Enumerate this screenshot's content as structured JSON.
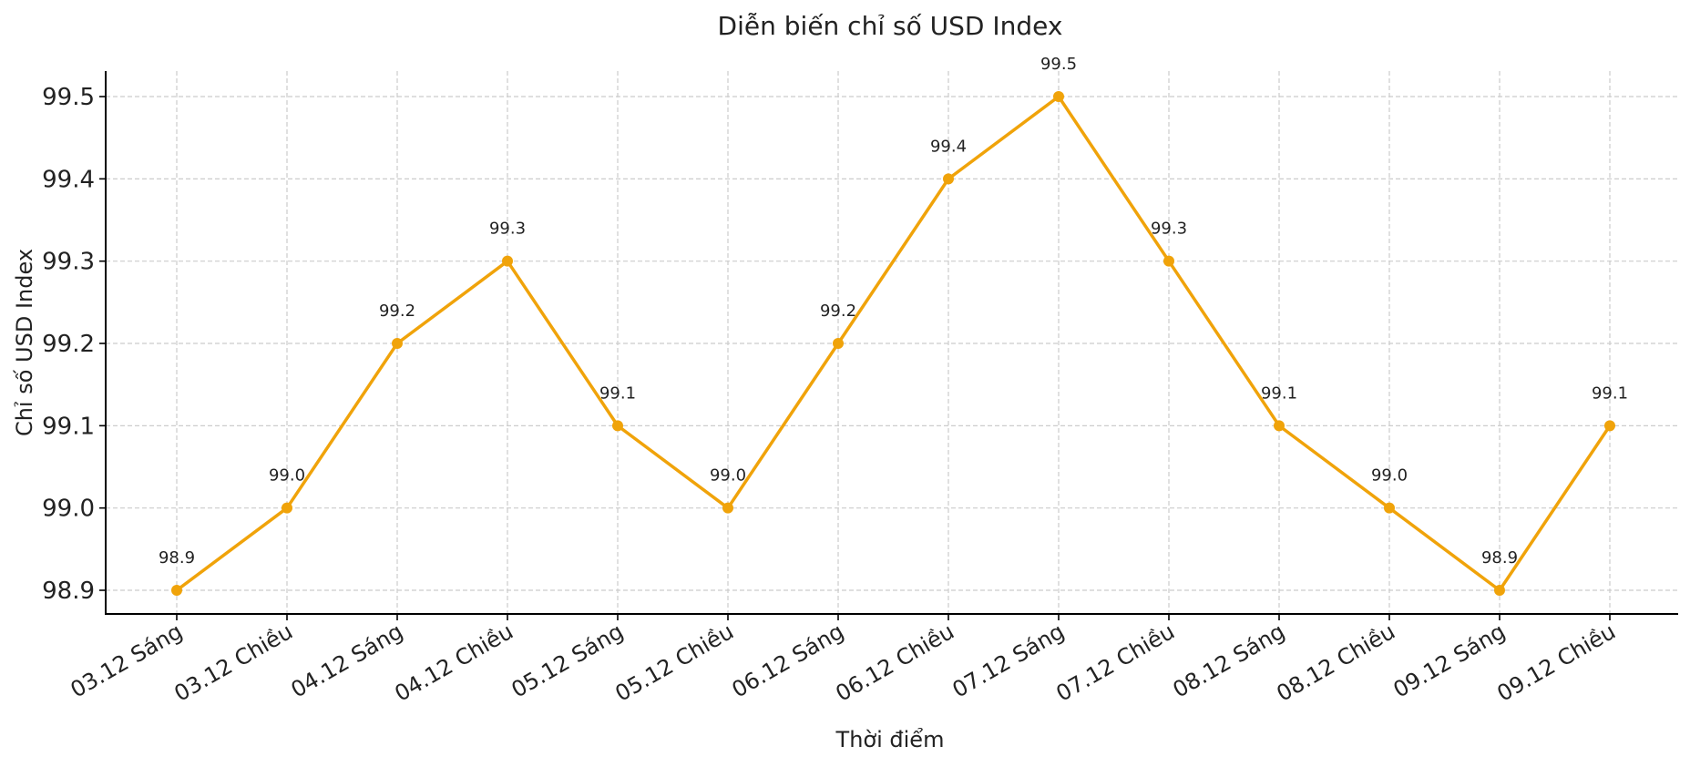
{
  "chart_data": {
    "type": "line",
    "title": "Diễn biến chỉ số USD Index",
    "xlabel": "Thời điểm",
    "ylabel": "Chỉ số USD Index",
    "categories": [
      "03.12 Sáng",
      "03.12 Chiều",
      "04.12 Sáng",
      "04.12 Chiều",
      "05.12 Sáng",
      "05.12 Chiều",
      "06.12 Sáng",
      "06.12 Chiều",
      "07.12 Sáng",
      "07.12 Chiều",
      "08.12 Sáng",
      "08.12 Chiều",
      "09.12 Sáng",
      "09.12 Chiều"
    ],
    "series": [
      {
        "name": "USD Index",
        "color": "#f0a30a",
        "marker": "circle",
        "values": [
          98.9,
          99.0,
          99.2,
          99.3,
          99.1,
          99.0,
          99.2,
          99.4,
          99.5,
          99.3,
          99.1,
          99.0,
          98.9,
          99.1
        ]
      }
    ],
    "data_labels": [
      "98.9",
      "99.0",
      "99.2",
      "99.3",
      "99.1",
      "99.0",
      "99.2",
      "99.4",
      "99.5",
      "99.3",
      "99.1",
      "99.0",
      "98.9",
      "99.1"
    ],
    "yticks": [
      98.9,
      99.0,
      99.1,
      99.2,
      99.3,
      99.4,
      99.5
    ],
    "ytick_labels": [
      "98.9",
      "99.0",
      "99.1",
      "99.2",
      "99.3",
      "99.4",
      "99.5"
    ],
    "ylim": [
      98.87,
      99.53
    ],
    "grid": true,
    "grid_style": "dashed",
    "legend": null,
    "xtick_rotation": -30
  }
}
